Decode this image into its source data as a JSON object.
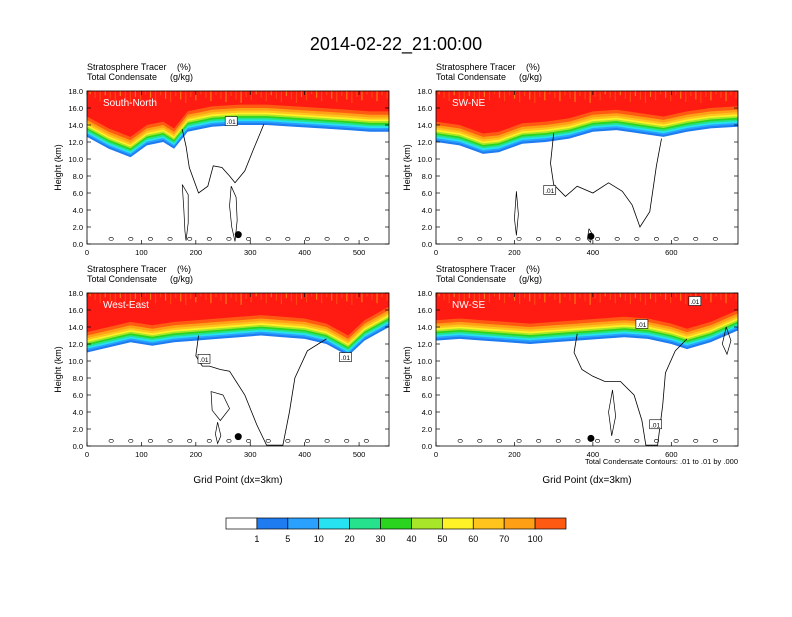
{
  "title": "2014-02-22_21:00:00",
  "colors": {
    "bins": [
      "#ffffff",
      "#1e7bf0",
      "#2aa1ff",
      "#27e2f0",
      "#27e28c",
      "#2ad41f",
      "#a8e62a",
      "#fff227",
      "#ffc41e",
      "#ff9f16",
      "#ff5a12",
      "#ff1a12"
    ],
    "contour": "#000000",
    "marker": "#000000"
  },
  "colorbar": {
    "labels": [
      "1",
      "5",
      "10",
      "20",
      "30",
      "40",
      "50",
      "60",
      "70",
      "100"
    ]
  },
  "footnote": "Total Condensate Contours: .01 to .01 by .000",
  "chart_data": [
    {
      "type": "heatmap",
      "panel_label": "South-North",
      "subtitle_line1": "Stratosphere Tracer",
      "subtitle_unit1": "(%)",
      "subtitle_line2": "Total Condensate",
      "subtitle_unit2": "(g/kg)",
      "ylabel": "Height (km)",
      "xlabel": "",
      "xlim": [
        0,
        555
      ],
      "ylim": [
        0,
        18
      ],
      "xticks": [
        0,
        100,
        200,
        300,
        400,
        500
      ],
      "yticks": [
        "0.0",
        "2.0",
        "4.0",
        "6.0",
        "8.0",
        "10.0",
        "12.0",
        "14.0",
        "16.0",
        "18.0"
      ],
      "contour_label": ".01",
      "contour_label_pos": [
        265,
        14.4
      ],
      "marker": [
        278,
        1.1
      ],
      "tracer_profile": [
        [
          0,
          12.6
        ],
        [
          40,
          11.2
        ],
        [
          80,
          10.2
        ],
        [
          110,
          11.6
        ],
        [
          140,
          12.0
        ],
        [
          160,
          11.2
        ],
        [
          185,
          13.2
        ],
        [
          230,
          13.8
        ],
        [
          280,
          14.0
        ],
        [
          330,
          14.0
        ],
        [
          380,
          13.8
        ],
        [
          430,
          13.6
        ],
        [
          480,
          13.4
        ],
        [
          520,
          13.2
        ],
        [
          555,
          13.2
        ]
      ],
      "cloud_boundary": [
        [
          175,
          13.5
        ],
        [
          182,
          11.5
        ],
        [
          188,
          9.0
        ],
        [
          205,
          6.0
        ],
        [
          222,
          6.8
        ],
        [
          232,
          9.2
        ],
        [
          248,
          9.0
        ],
        [
          262,
          8.0
        ],
        [
          272,
          7.2
        ],
        [
          290,
          8.6
        ],
        [
          305,
          11.0
        ],
        [
          318,
          13.0
        ],
        [
          325,
          14.1
        ]
      ],
      "surface_contours": [
        [
          [
            175,
            7.0
          ],
          [
            178,
            4.0
          ],
          [
            180,
            1.5
          ],
          [
            182,
            0.4
          ],
          [
            186,
            2.5
          ],
          [
            186,
            5.8
          ],
          [
            175,
            7.0
          ]
        ],
        [
          [
            265,
            6.8
          ],
          [
            262,
            4.5
          ],
          [
            266,
            2.0
          ],
          [
            272,
            0.3
          ],
          [
            276,
            2.8
          ],
          [
            274,
            5.5
          ],
          [
            265,
            6.8
          ]
        ]
      ]
    },
    {
      "type": "heatmap",
      "panel_label": "SW-NE",
      "subtitle_line1": "Stratosphere Tracer",
      "subtitle_unit1": "(%)",
      "subtitle_line2": "Total Condensate",
      "subtitle_unit2": "(g/kg)",
      "ylabel": "Height (km)",
      "xlabel": "",
      "xlim": [
        0,
        770
      ],
      "ylim": [
        0,
        18
      ],
      "xticks": [
        0,
        200,
        400,
        600
      ],
      "yticks": [
        "0.0",
        "2.0",
        "4.0",
        "6.0",
        "8.0",
        "10.0",
        "12.0",
        "14.0",
        "16.0",
        "18.0"
      ],
      "contour_label": ".01",
      "contour_label_pos": [
        290,
        6.3
      ],
      "marker": [
        395,
        0.9
      ],
      "tracer_profile": [
        [
          0,
          12.0
        ],
        [
          60,
          11.6
        ],
        [
          120,
          10.6
        ],
        [
          160,
          10.8
        ],
        [
          220,
          11.8
        ],
        [
          280,
          12.0
        ],
        [
          340,
          12.4
        ],
        [
          400,
          13.2
        ],
        [
          460,
          13.4
        ],
        [
          520,
          13.0
        ],
        [
          580,
          12.6
        ],
        [
          640,
          13.2
        ],
        [
          700,
          13.6
        ],
        [
          770,
          13.8
        ]
      ],
      "cloud_boundary": [
        [
          300,
          13.0
        ],
        [
          292,
          9.5
        ],
        [
          300,
          7.0
        ],
        [
          330,
          5.6
        ],
        [
          360,
          6.8
        ],
        [
          400,
          6.0
        ],
        [
          440,
          7.2
        ],
        [
          475,
          6.2
        ],
        [
          500,
          4.6
        ],
        [
          520,
          2.0
        ],
        [
          545,
          3.8
        ],
        [
          562,
          9.2
        ],
        [
          575,
          12.4
        ]
      ],
      "surface_contours": [
        [
          [
            205,
            6.2
          ],
          [
            200,
            3.0
          ],
          [
            205,
            1.0
          ],
          [
            210,
            3.5
          ],
          [
            205,
            6.2
          ]
        ],
        [
          [
            390,
            1.8
          ],
          [
            386,
            0.6
          ],
          [
            394,
            0.2
          ],
          [
            398,
            1.2
          ],
          [
            390,
            1.8
          ]
        ]
      ]
    },
    {
      "type": "heatmap",
      "panel_label": "West-East",
      "subtitle_line1": "Stratosphere Tracer",
      "subtitle_unit1": "(%)",
      "subtitle_line2": "Total Condensate",
      "subtitle_unit2": "(g/kg)",
      "ylabel": "Height (km)",
      "xlabel": "Grid Point (dx=3km)",
      "xlim": [
        0,
        555
      ],
      "ylim": [
        0,
        18
      ],
      "xticks": [
        0,
        100,
        200,
        300,
        400,
        500
      ],
      "yticks": [
        "0.0",
        "2.0",
        "4.0",
        "6.0",
        "8.0",
        "10.0",
        "12.0",
        "14.0",
        "16.0",
        "18.0"
      ],
      "contour_label": ".01",
      "contour_label_pos": [
        215,
        10.2
      ],
      "contour_label2": ".01",
      "contour_label2_pos": [
        475,
        10.4
      ],
      "marker": [
        278,
        1.1
      ],
      "tracer_profile": [
        [
          0,
          11.0
        ],
        [
          40,
          11.6
        ],
        [
          80,
          12.2
        ],
        [
          120,
          11.8
        ],
        [
          160,
          12.2
        ],
        [
          200,
          12.4
        ],
        [
          240,
          12.6
        ],
        [
          280,
          12.8
        ],
        [
          320,
          13.0
        ],
        [
          360,
          12.8
        ],
        [
          400,
          12.6
        ],
        [
          440,
          12.0
        ],
        [
          480,
          10.6
        ],
        [
          510,
          12.4
        ],
        [
          555,
          14.0
        ]
      ],
      "cloud_boundary": [
        [
          205,
          13.0
        ],
        [
          200,
          10.6
        ],
        [
          212,
          9.4
        ],
        [
          225,
          9.4
        ],
        [
          245,
          9.0
        ],
        [
          262,
          8.8
        ],
        [
          290,
          6.0
        ],
        [
          312,
          2.5
        ],
        [
          330,
          0.1
        ],
        [
          360,
          0.1
        ],
        [
          372,
          4.0
        ],
        [
          382,
          8.0
        ],
        [
          405,
          11.2
        ],
        [
          440,
          12.6
        ]
      ],
      "surface_contours": [
        [
          [
            250,
            6.0
          ],
          [
            228,
            6.4
          ],
          [
            230,
            4.2
          ],
          [
            245,
            3.0
          ],
          [
            262,
            4.4
          ],
          [
            250,
            6.0
          ]
        ],
        [
          [
            240,
            2.8
          ],
          [
            236,
            1.4
          ],
          [
            240,
            0.3
          ],
          [
            246,
            1.2
          ],
          [
            240,
            2.8
          ]
        ]
      ]
    },
    {
      "type": "heatmap",
      "panel_label": "NW-SE",
      "subtitle_line1": "Stratosphere Tracer",
      "subtitle_unit1": "(%)",
      "subtitle_line2": "Total Condensate",
      "subtitle_unit2": "(g/kg)",
      "ylabel": "Height (km)",
      "xlabel": "Grid Point (dx=3km)",
      "xlim": [
        0,
        770
      ],
      "ylim": [
        0,
        18
      ],
      "xticks": [
        0,
        200,
        400,
        600
      ],
      "yticks": [
        "0.0",
        "2.0",
        "4.0",
        "6.0",
        "8.0",
        "10.0",
        "12.0",
        "14.0",
        "16.0",
        "18.0"
      ],
      "contour_label": ".01",
      "contour_label_pos": [
        525,
        14.3
      ],
      "contour_label2": ".01",
      "contour_label2_pos": [
        560,
        2.5
      ],
      "contour_label3": ".01",
      "contour_label3_pos": [
        660,
        17.0
      ],
      "marker": [
        395,
        0.9
      ],
      "tracer_profile": [
        [
          0,
          12.4
        ],
        [
          60,
          12.6
        ],
        [
          120,
          12.4
        ],
        [
          180,
          12.2
        ],
        [
          240,
          12.0
        ],
        [
          300,
          12.2
        ],
        [
          360,
          12.4
        ],
        [
          420,
          12.6
        ],
        [
          480,
          12.8
        ],
        [
          540,
          12.6
        ],
        [
          600,
          12.0
        ],
        [
          640,
          11.4
        ],
        [
          700,
          12.2
        ],
        [
          740,
          13.0
        ],
        [
          770,
          13.6
        ]
      ],
      "cloud_boundary": [
        [
          360,
          13.2
        ],
        [
          352,
          11.0
        ],
        [
          372,
          9.0
        ],
        [
          400,
          8.2
        ],
        [
          430,
          7.6
        ],
        [
          470,
          7.6
        ],
        [
          505,
          6.0
        ],
        [
          525,
          3.0
        ],
        [
          535,
          0.1
        ],
        [
          565,
          0.1
        ],
        [
          578,
          4.8
        ],
        [
          585,
          8.6
        ],
        [
          610,
          11.2
        ],
        [
          640,
          12.6
        ]
      ],
      "surface_contours": [
        [
          [
            450,
            6.6
          ],
          [
            440,
            4.0
          ],
          [
            448,
            1.2
          ],
          [
            458,
            3.5
          ],
          [
            450,
            6.6
          ]
        ],
        [
          [
            740,
            14.0
          ],
          [
            730,
            12.0
          ],
          [
            742,
            10.8
          ],
          [
            752,
            12.4
          ],
          [
            740,
            14.0
          ]
        ]
      ]
    }
  ]
}
